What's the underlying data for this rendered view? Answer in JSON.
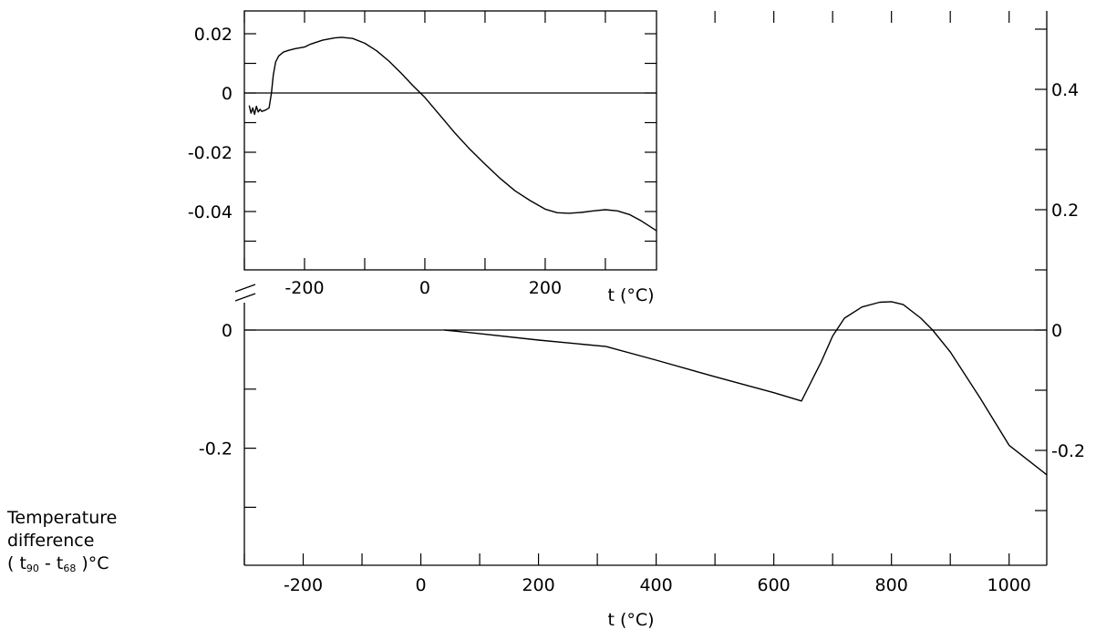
{
  "ylabel": {
    "line1": "Temperature",
    "line2": "difference",
    "paren_open": "(",
    "t90_t": "t",
    "t90_sub": "90",
    "minus": "-",
    "t68_t": "t",
    "t68_sub": "68",
    "paren_close": ")°C"
  },
  "chart_data": [
    {
      "type": "line",
      "panel": "main",
      "title": "",
      "xlabel": "t (°C)",
      "ylabel": "Temperature difference ( t90 - t68 )°C",
      "xlim": [
        -300,
        1064
      ],
      "ylim_right": [
        -0.39,
        0.52
      ],
      "x_ticks": [
        -200,
        0,
        200,
        400,
        600,
        800,
        1000
      ],
      "x_minor_ticks": [
        -300,
        -100,
        100,
        300,
        500,
        700,
        900
      ],
      "y_left_ticks": [
        0,
        -0.2
      ],
      "y_left_minor_ticks": [
        -0.1,
        -0.3
      ],
      "y_right_ticks": [
        0.4,
        0.2,
        0,
        -0.2
      ],
      "y_right_minor_ticks": [
        0.5,
        0.3,
        0.1,
        -0.1,
        -0.3
      ],
      "axis_break_on_left": true,
      "zero_line": true,
      "grid": false,
      "series": [
        {
          "x": [
            40,
            100,
            200,
            315,
            400,
            500,
            600,
            647,
            680,
            700,
            720,
            750,
            780,
            800,
            820,
            850,
            870,
            900,
            950,
            1000,
            1064
          ],
          "y": [
            0.0,
            -0.006,
            -0.017,
            -0.028,
            -0.051,
            -0.079,
            -0.106,
            -0.12,
            -0.055,
            -0.01,
            0.02,
            0.039,
            0.047,
            0.048,
            0.043,
            0.02,
            0.0,
            -0.037,
            -0.114,
            -0.195,
            -0.245
          ]
        }
      ]
    },
    {
      "type": "line",
      "panel": "inset",
      "title": "",
      "xlabel": "t (°C)",
      "xlim": [
        -300,
        385
      ],
      "ylim": [
        -0.06,
        0.028
      ],
      "x_ticks": [
        -200,
        0,
        200
      ],
      "x_minor_ticks": [
        -300,
        -100,
        100,
        300
      ],
      "y_ticks": [
        0.02,
        0,
        -0.02,
        -0.04
      ],
      "y_minor_ticks": [
        0.01,
        -0.01,
        -0.03,
        -0.05
      ],
      "zero_line": true,
      "grid": false,
      "series": [
        {
          "x": [
            -292,
            -289,
            -286,
            -283,
            -280,
            -277,
            -274,
            -271,
            -265,
            -259,
            -255,
            -252,
            -248,
            -243,
            -235,
            -225,
            -215,
            -200,
            -190,
            -170,
            -150,
            -138,
            -120,
            -100,
            -80,
            -60,
            -40,
            -20,
            0,
            25,
            50,
            75,
            100,
            125,
            150,
            175,
            200,
            220,
            240,
            260,
            280,
            300,
            320,
            340,
            360,
            385
          ],
          "y": [
            -0.0042,
            -0.0068,
            -0.005,
            -0.0072,
            -0.0045,
            -0.0064,
            -0.0055,
            -0.0062,
            -0.0058,
            -0.005,
            0.0,
            0.006,
            0.0105,
            0.0125,
            0.0138,
            0.0145,
            0.015,
            0.0155,
            0.0165,
            0.0178,
            0.0186,
            0.0188,
            0.0184,
            0.0168,
            0.0142,
            0.0108,
            0.0068,
            0.0025,
            -0.0015,
            -0.0075,
            -0.0135,
            -0.019,
            -0.024,
            -0.0288,
            -0.033,
            -0.0363,
            -0.0392,
            -0.0404,
            -0.0406,
            -0.0403,
            -0.0398,
            -0.0394,
            -0.0398,
            -0.041,
            -0.0432,
            -0.0465
          ]
        }
      ]
    }
  ]
}
